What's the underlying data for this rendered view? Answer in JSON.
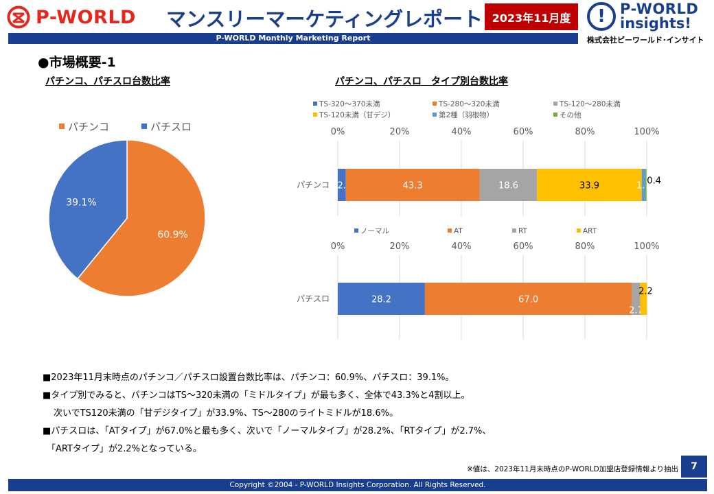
{
  "header": {
    "logo_left_text": "P-WORLD",
    "title": "マンスリーマーケティングレポート",
    "month_badge": "2023年11月度",
    "logo_right_line1": "P-WORLD",
    "logo_right_line2": "insights!",
    "company": "株式会社ピーワールド･インサイト",
    "subtitle": "P-WORLD Monthly Marketing Report"
  },
  "section_title": "●市場概要-1",
  "charts": {
    "left_title": "パチンコ、パチスロ台数比率",
    "right_title": "パチンコ、パチスロ　タイプ別台数比率"
  },
  "chart_data": [
    {
      "type": "pie",
      "title": "パチンコ、パチスロ台数比率",
      "categories": [
        "パチンコ",
        "パチスロ"
      ],
      "values": [
        60.9,
        39.1
      ],
      "labels": [
        "60.9%",
        "39.1%"
      ],
      "colors": [
        "#ed7d31",
        "#4472c4"
      ],
      "legend": "top"
    },
    {
      "type": "bar",
      "orientation": "horizontal",
      "stacked": true,
      "title": "パチンコ、パチスロ　タイプ別台数比率",
      "categories": [
        "パチンコ"
      ],
      "xlim": [
        0,
        100
      ],
      "ticks": [
        "0%",
        "20%",
        "40%",
        "60%",
        "80%",
        "100%"
      ],
      "series": [
        {
          "name": "TS-320～370未満",
          "values": [
            2.6
          ],
          "color": "#4472c4"
        },
        {
          "name": "TS-280～320未満",
          "values": [
            43.3
          ],
          "color": "#ed7d31"
        },
        {
          "name": "TS-120～280未満",
          "values": [
            18.6
          ],
          "color": "#a5a5a5"
        },
        {
          "name": "TS-120未満（甘デジ）",
          "values": [
            33.9
          ],
          "color": "#ffc000"
        },
        {
          "name": "第2種（羽根物）",
          "values": [
            1.1
          ],
          "color": "#5b9bd5"
        },
        {
          "name": "その他",
          "values": [
            0.4
          ],
          "color": "#70ad47"
        }
      ],
      "legend": "top"
    },
    {
      "type": "bar",
      "orientation": "horizontal",
      "stacked": true,
      "categories": [
        "パチスロ"
      ],
      "xlim": [
        0,
        100
      ],
      "ticks": [
        "0%",
        "20%",
        "40%",
        "60%",
        "80%",
        "100%"
      ],
      "series": [
        {
          "name": "ノーマル",
          "values": [
            28.2
          ],
          "color": "#4472c4"
        },
        {
          "name": "AT",
          "values": [
            67.0
          ],
          "color": "#ed7d31"
        },
        {
          "name": "RT",
          "values": [
            2.7
          ],
          "color": "#a5a5a5"
        },
        {
          "name": "ART",
          "values": [
            2.2
          ],
          "color": "#ffc000"
        }
      ],
      "legend": "top"
    }
  ],
  "bullets": [
    "■2023年11月末時点のパチンコ／パチスロ設置台数比率は、パチンコ：60.9%、パチスロ：39.1%。",
    "■タイプ別でみると、パチンコはTS～320未満の「ミドルタイプ」が最も多く、全体で43.3%と4割以上。",
    "次いでTS120未満の「甘デジタイプ」が33.9%、TS～280のライトミドルが18.6%。",
    "■パチスロは、「ATタイプ」が67.0%と最も多く、次いで「ノーマルタイプ」が28.2%、「RTタイプ」が2.7%、",
    "「ARTタイプ」が2.2%となっている。"
  ],
  "note": "※値は、2023年11月末時点のP-WORLD加盟店登録情報より抽出",
  "page_number": "7",
  "footer": "Copyright ©2004 -  P-WORLD Insights Corporation. All Rights Reserved."
}
